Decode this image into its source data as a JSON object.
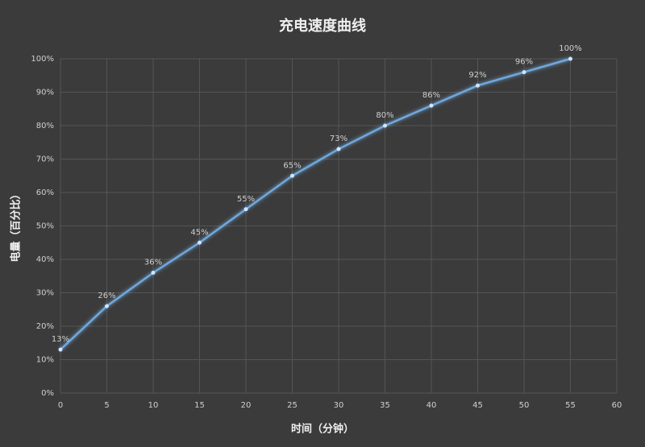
{
  "chart_data": {
    "type": "line",
    "title": "充电速度曲线",
    "x_label": "时间（分钟）",
    "y_label": "电量（百分比）",
    "x": [
      0,
      5,
      10,
      15,
      20,
      25,
      30,
      35,
      40,
      45,
      50,
      55
    ],
    "values": [
      13,
      26,
      36,
      45,
      55,
      65,
      73,
      80,
      86,
      92,
      96,
      100
    ],
    "value_labels": [
      "13%",
      "26%",
      "36%",
      "45%",
      "55%",
      "65%",
      "73%",
      "80%",
      "86%",
      "92%",
      "96%",
      "100%"
    ],
    "color": "#6fa8dc",
    "xlim": [
      0,
      60
    ],
    "xticks": [
      0,
      5,
      10,
      15,
      20,
      25,
      30,
      35,
      40,
      45,
      50,
      55,
      60
    ],
    "ylim": [
      0,
      100
    ],
    "yticks": [
      {
        "value": 0,
        "label": "0%"
      },
      {
        "value": 10,
        "label": "10%"
      },
      {
        "value": 20,
        "label": "20%"
      },
      {
        "value": 30,
        "label": "30%"
      },
      {
        "value": 40,
        "label": "40%"
      },
      {
        "value": 50,
        "label": "50%"
      },
      {
        "value": 60,
        "label": "60%"
      },
      {
        "value": 70,
        "label": "70%"
      },
      {
        "value": 80,
        "label": "80%"
      },
      {
        "value": 90,
        "label": "90%"
      },
      {
        "value": 100,
        "label": "100%"
      }
    ],
    "grid": true
  }
}
